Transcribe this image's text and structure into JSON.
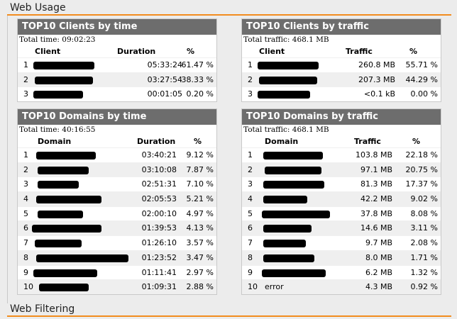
{
  "sections": {
    "web_usage": "Web Usage",
    "web_filtering": "Web Filtering"
  },
  "panels": {
    "clients_time": {
      "title": "TOP10 Clients by time",
      "total": "Total time: 09:02:23",
      "columns": [
        "Client",
        "Duration",
        "%"
      ],
      "rows": [
        {
          "rank": "1",
          "name": "",
          "value": "05:33:24",
          "pct": "61.47 %"
        },
        {
          "rank": "2",
          "name": "",
          "value": "03:27:54",
          "pct": "38.33 %"
        },
        {
          "rank": "3",
          "name": "",
          "value": "00:01:05",
          "pct": "0.20 %"
        }
      ]
    },
    "clients_traffic": {
      "title": "TOP10 Clients by traffic",
      "total": "Total traffic: 468.1 MB",
      "columns": [
        "Client",
        "Traffic",
        "%"
      ],
      "rows": [
        {
          "rank": "1",
          "name": "",
          "value": "260.8 MB",
          "pct": "55.71 %"
        },
        {
          "rank": "2",
          "name": "",
          "value": "207.3 MB",
          "pct": "44.29 %"
        },
        {
          "rank": "3",
          "name": "",
          "value": "<0.1 kB",
          "pct": "0.00 %"
        }
      ]
    },
    "domains_time": {
      "title": "TOP10 Domains by time",
      "total": "Total time: 40:16:55",
      "columns": [
        "Domain",
        "Duration",
        "%"
      ],
      "rows": [
        {
          "rank": "1",
          "name": "",
          "value": "03:40:21",
          "pct": "9.12 %"
        },
        {
          "rank": "2",
          "name": "",
          "value": "03:10:08",
          "pct": "7.87 %"
        },
        {
          "rank": "3",
          "name": "",
          "value": "02:51:31",
          "pct": "7.10 %"
        },
        {
          "rank": "4",
          "name": "",
          "value": "02:05:53",
          "pct": "5.21 %"
        },
        {
          "rank": "5",
          "name": "",
          "value": "02:00:10",
          "pct": "4.97 %"
        },
        {
          "rank": "6",
          "name": "",
          "value": "01:39:53",
          "pct": "4.13 %"
        },
        {
          "rank": "7",
          "name": "",
          "value": "01:26:10",
          "pct": "3.57 %"
        },
        {
          "rank": "8",
          "name": "",
          "value": "01:23:52",
          "pct": "3.47 %"
        },
        {
          "rank": "9",
          "name": "",
          "value": "01:11:41",
          "pct": "2.97 %"
        },
        {
          "rank": "10",
          "name": "",
          "value": "01:09:31",
          "pct": "2.88 %"
        }
      ]
    },
    "domains_traffic": {
      "title": "TOP10 Domains by traffic",
      "total": "Total traffic: 468.1 MB",
      "columns": [
        "Domain",
        "Traffic",
        "%"
      ],
      "rows": [
        {
          "rank": "1",
          "name": "",
          "value": "103.8 MB",
          "pct": "22.18 %"
        },
        {
          "rank": "2",
          "name": "",
          "value": "97.1 MB",
          "pct": "20.75 %"
        },
        {
          "rank": "3",
          "name": "",
          "value": "81.3 MB",
          "pct": "17.37 %"
        },
        {
          "rank": "4",
          "name": "",
          "value": "42.2 MB",
          "pct": "9.02 %"
        },
        {
          "rank": "5",
          "name": "",
          "value": "37.8 MB",
          "pct": "8.08 %"
        },
        {
          "rank": "6",
          "name": "",
          "value": "14.6 MB",
          "pct": "3.11 %"
        },
        {
          "rank": "7",
          "name": "",
          "value": "9.7 MB",
          "pct": "2.08 %"
        },
        {
          "rank": "8",
          "name": "",
          "value": "8.0 MB",
          "pct": "1.71 %"
        },
        {
          "rank": "9",
          "name": "",
          "value": "6.2 MB",
          "pct": "1.32 %"
        },
        {
          "rank": "10",
          "name": "error",
          "value": "4.3 MB",
          "pct": "0.92 %"
        }
      ]
    }
  }
}
